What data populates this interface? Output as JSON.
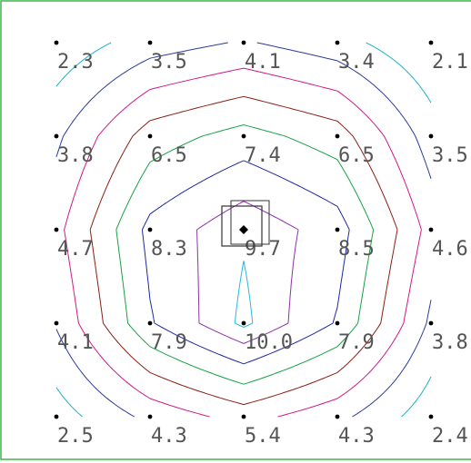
{
  "chart_data": {
    "type": "contour",
    "grid": {
      "columns": 5,
      "rows": 5,
      "values": [
        [
          "2.3",
          "3.5",
          "4.1",
          "3.4",
          "2.1"
        ],
        [
          "3.8",
          "6.5",
          "7.4",
          "6.5",
          "3.5"
        ],
        [
          "4.7",
          "8.3",
          "9.7",
          "8.5",
          "4.6"
        ],
        [
          "4.1",
          "7.9",
          "10.0",
          "7.9",
          "3.8"
        ],
        [
          "2.5",
          "4.3",
          "5.4",
          "4.3",
          "2.4"
        ]
      ]
    },
    "contour_levels": [
      {
        "level": 3,
        "color": "#19b3c6"
      },
      {
        "level": 4,
        "color": "#2b3b9a"
      },
      {
        "level": 5,
        "color": "#d01888"
      },
      {
        "level": 6,
        "color": "#8a1d12"
      },
      {
        "level": 7,
        "color": "#17a043"
      },
      {
        "level": 8,
        "color": "#1d28a0"
      },
      {
        "level": 9,
        "color": "#8e2fa8"
      },
      {
        "level": 9.8,
        "color": "#27b7db"
      }
    ],
    "selection_marker": {
      "row": 2,
      "column": 2
    }
  },
  "colors": {
    "frame": "#39b54a",
    "label": "#555555",
    "point": "#000000",
    "marker_box": "#333333"
  }
}
